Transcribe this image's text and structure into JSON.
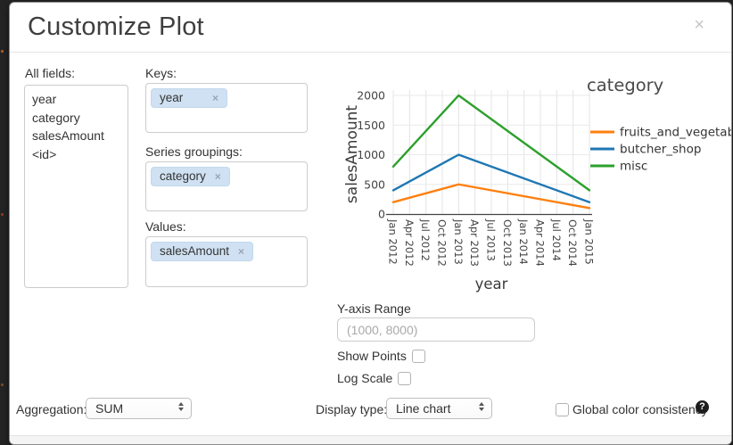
{
  "dialog": {
    "title": "Customize Plot",
    "close_glyph": "×",
    "tag_remove_glyph": "×"
  },
  "fields_panel": {
    "label": "All fields:",
    "items": [
      "year",
      "category",
      "salesAmount",
      "<id>"
    ]
  },
  "keys_section": {
    "label": "Keys:",
    "tags": [
      {
        "text": "year"
      }
    ]
  },
  "series_section": {
    "label": "Series groupings:",
    "tags": [
      {
        "text": "category"
      }
    ]
  },
  "values_section": {
    "label": "Values:",
    "tags": [
      {
        "text": "salesAmount"
      }
    ]
  },
  "options": {
    "y_axis_range_label": "Y-axis Range",
    "y_axis_range_value": "",
    "y_axis_range_placeholder": "(1000, 8000)",
    "show_points_label": "Show Points",
    "show_points_checked": false,
    "log_scale_label": "Log Scale",
    "log_scale_checked": false
  },
  "footer_controls": {
    "aggregation_label": "Aggregation:",
    "aggregation_value": "SUM",
    "display_type_label": "Display type:",
    "display_type_value": "Line chart",
    "global_color_label": "Global color consistency",
    "global_color_checked": false,
    "help_glyph": "?"
  },
  "chart_data": {
    "type": "line",
    "title": "",
    "xlabel": "year",
    "ylabel": "salesAmount",
    "legend_title": "category",
    "legend_position": "right",
    "grid": true,
    "ylim": [
      0,
      2000
    ],
    "y_ticks": [
      0,
      500,
      1000,
      1500,
      2000
    ],
    "x_ticks": [
      "Jan 2012",
      "Apr 2012",
      "Jul 2012",
      "Oct 2012",
      "Jan 2013",
      "Apr 2013",
      "Jul 2013",
      "Oct 2013",
      "Jan 2014",
      "Apr 2014",
      "Jul 2014",
      "Oct 2014",
      "Jan 2015"
    ],
    "series": [
      {
        "name": "fruits_and_vegetables",
        "color": "#ff7f0e",
        "points": [
          [
            "Jan 2012",
            200
          ],
          [
            "Jan 2013",
            500
          ],
          [
            "Jan 2015",
            100
          ]
        ]
      },
      {
        "name": "butcher_shop",
        "color": "#1f77b4",
        "points": [
          [
            "Jan 2012",
            400
          ],
          [
            "Jan 2013",
            1000
          ],
          [
            "Jan 2015",
            200
          ]
        ]
      },
      {
        "name": "misc",
        "color": "#2ca02c",
        "points": [
          [
            "Jan 2012",
            800
          ],
          [
            "Jan 2013",
            2000
          ],
          [
            "Jan 2015",
            400
          ]
        ]
      }
    ]
  }
}
